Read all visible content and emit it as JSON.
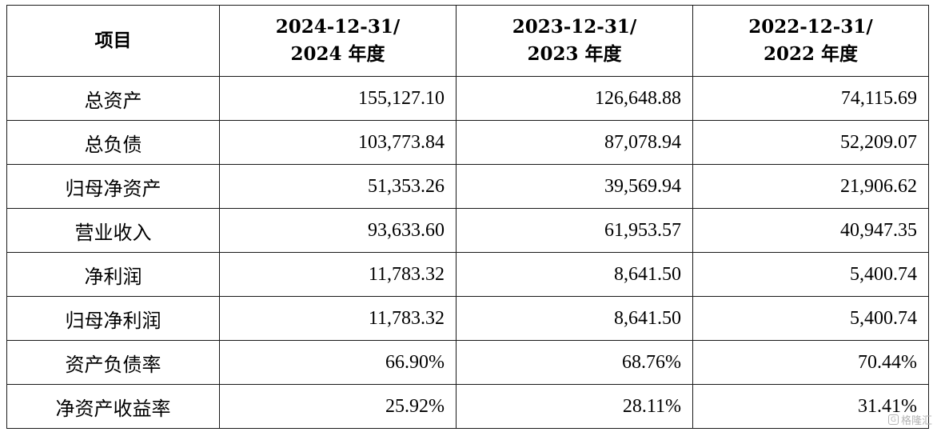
{
  "table": {
    "header": {
      "item_label": "项目",
      "columns": [
        {
          "line1": "2024-12-31/",
          "line2": "2024 年度"
        },
        {
          "line1": "2023-12-31/",
          "line2": "2023 年度"
        },
        {
          "line1": "2022-12-31/",
          "line2": "2022 年度"
        }
      ]
    },
    "rows": [
      {
        "label": "总资产",
        "values": [
          "155,127.10",
          "126,648.88",
          "74,115.69"
        ]
      },
      {
        "label": "总负债",
        "values": [
          "103,773.84",
          "87,078.94",
          "52,209.07"
        ]
      },
      {
        "label": "归母净资产",
        "values": [
          "51,353.26",
          "39,569.94",
          "21,906.62"
        ]
      },
      {
        "label": "营业收入",
        "values": [
          "93,633.60",
          "61,953.57",
          "40,947.35"
        ]
      },
      {
        "label": "净利润",
        "values": [
          "11,783.32",
          "8,641.50",
          "5,400.74"
        ]
      },
      {
        "label": "归母净利润",
        "values": [
          "11,783.32",
          "8,641.50",
          "5,400.74"
        ]
      },
      {
        "label": "资产负债率",
        "values": [
          "66.90%",
          "68.76%",
          "70.44%"
        ]
      },
      {
        "label": "净资产收益率",
        "values": [
          "25.92%",
          "28.11%",
          "31.41%"
        ]
      }
    ]
  },
  "watermark": {
    "icon": "G",
    "text": "格隆汇"
  }
}
